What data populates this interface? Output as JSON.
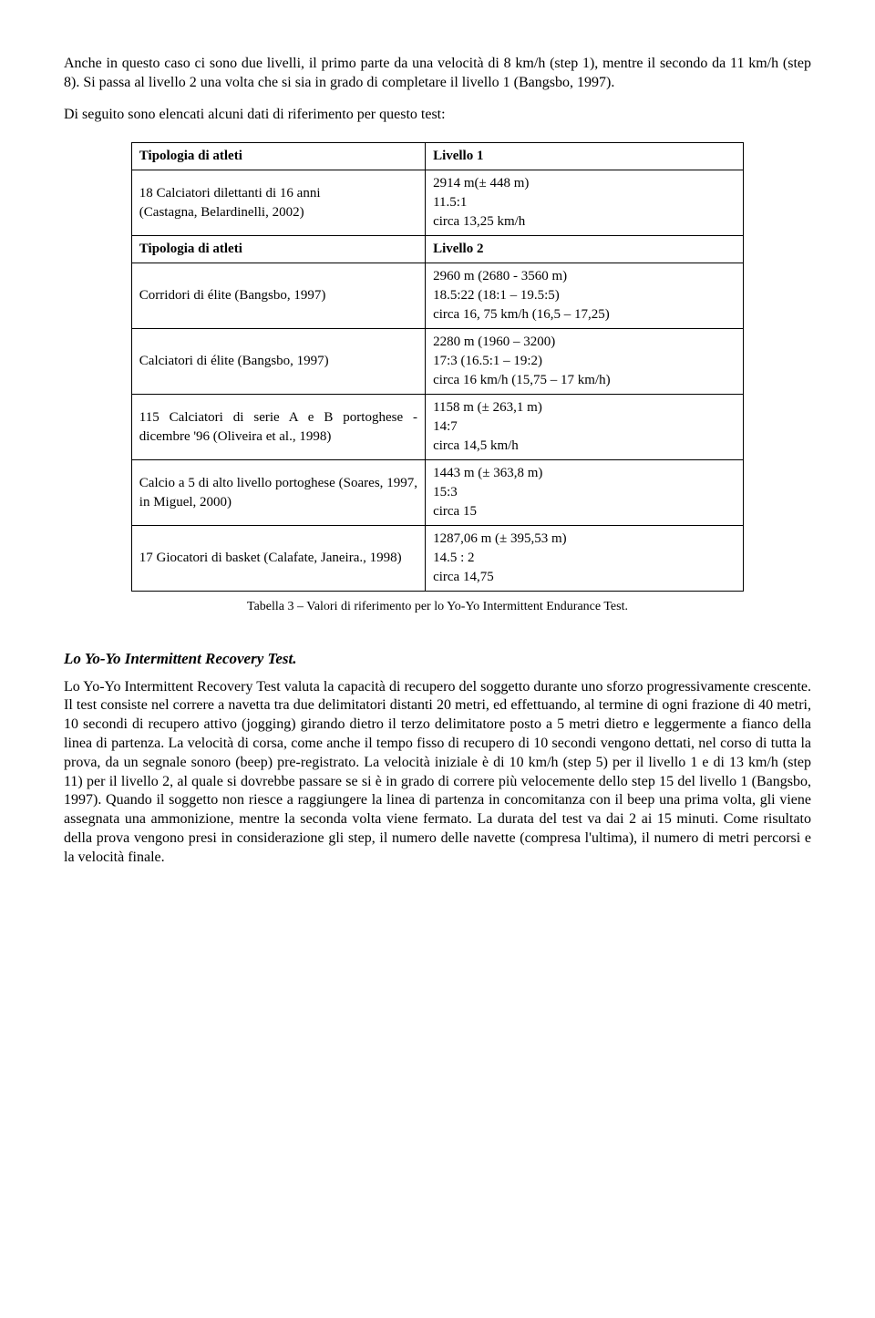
{
  "intro": "Anche in questo caso ci sono due livelli, il primo parte da una velocità di 8 km/h (step 1), mentre il secondo da 11 km/h (step 8). Si passa al livello 2 una volta che si sia in grado di completare il livello 1 (Bangsbo, 1997).",
  "intro2": "Di seguito sono elencati alcuni dati di riferimento per questo test:",
  "table": {
    "r1l": "Tipologia di atleti",
    "r1r": "Livello 1",
    "r2l": "18 Calciatori dilettanti di 16 anni\n(Castagna, Belardinelli, 2002)",
    "r2r": "2914 m(± 448 m)\n11.5:1\ncirca 13,25 km/h",
    "r3l": "Tipologia di atleti",
    "r3r": "Livello 2",
    "r4l": "Corridori di élite (Bangsbo, 1997)",
    "r4r": "2960 m (2680 - 3560 m)\n18.5:22 (18:1 – 19.5:5)\ncirca 16, 75 km/h (16,5 – 17,25)",
    "r5l": "Calciatori di élite (Bangsbo, 1997)",
    "r5r": "2280 m (1960 – 3200)\n17:3 (16.5:1 – 19:2)\ncirca 16 km/h (15,75 – 17 km/h)",
    "r6l": "115 Calciatori di serie A e B portoghese - dicembre '96 (Oliveira et al., 1998)",
    "r6r": "1158 m (± 263,1 m)\n14:7\ncirca 14,5 km/h",
    "r7l": "Calcio a 5 di alto livello portoghese (Soares, 1997, in Miguel, 2000)",
    "r7r": "1443 m (± 363,8 m)\n15:3\ncirca 15",
    "r8l": "17 Giocatori di basket (Calafate, Janeira., 1998)",
    "r8r": "1287,06 m (± 395,53 m)\n14.5 : 2\ncirca 14,75"
  },
  "caption": "Tabella 3 – Valori di riferimento per lo Yo-Yo Intermittent Endurance Test.",
  "sectionTitle": "Lo Yo-Yo Intermittent Recovery Test.",
  "body": "Lo Yo-Yo Intermittent Recovery Test valuta la capacità di recupero del soggetto durante uno sforzo progressivamente crescente. Il test consiste nel correre a navetta tra due delimitatori distanti 20 metri, ed effettuando, al termine di ogni frazione di 40 metri, 10 secondi di recupero attivo (jogging) girando dietro il terzo delimitatore posto a 5 metri dietro e leggermente a fianco della linea di partenza. La velocità di corsa, come anche il tempo fisso di recupero di 10 secondi vengono dettati, nel corso di tutta la prova, da un segnale sonoro (beep) pre-registrato. La velocità iniziale è di 10 km/h (step 5) per il livello 1 e di 13 km/h (step 11) per il livello 2, al quale si dovrebbe passare se si è in grado di correre più velocemente dello step 15 del livello 1 (Bangsbo, 1997). Quando il soggetto non riesce a raggiungere la linea di partenza in concomitanza con il beep una prima volta, gli viene assegnata una ammonizione, mentre la seconda volta viene fermato. La durata del test va dai 2 ai 15 minuti. Come risultato della prova vengono presi in considerazione gli step, il numero delle navette (compresa l'ultima), il numero di metri percorsi e la velocità finale."
}
